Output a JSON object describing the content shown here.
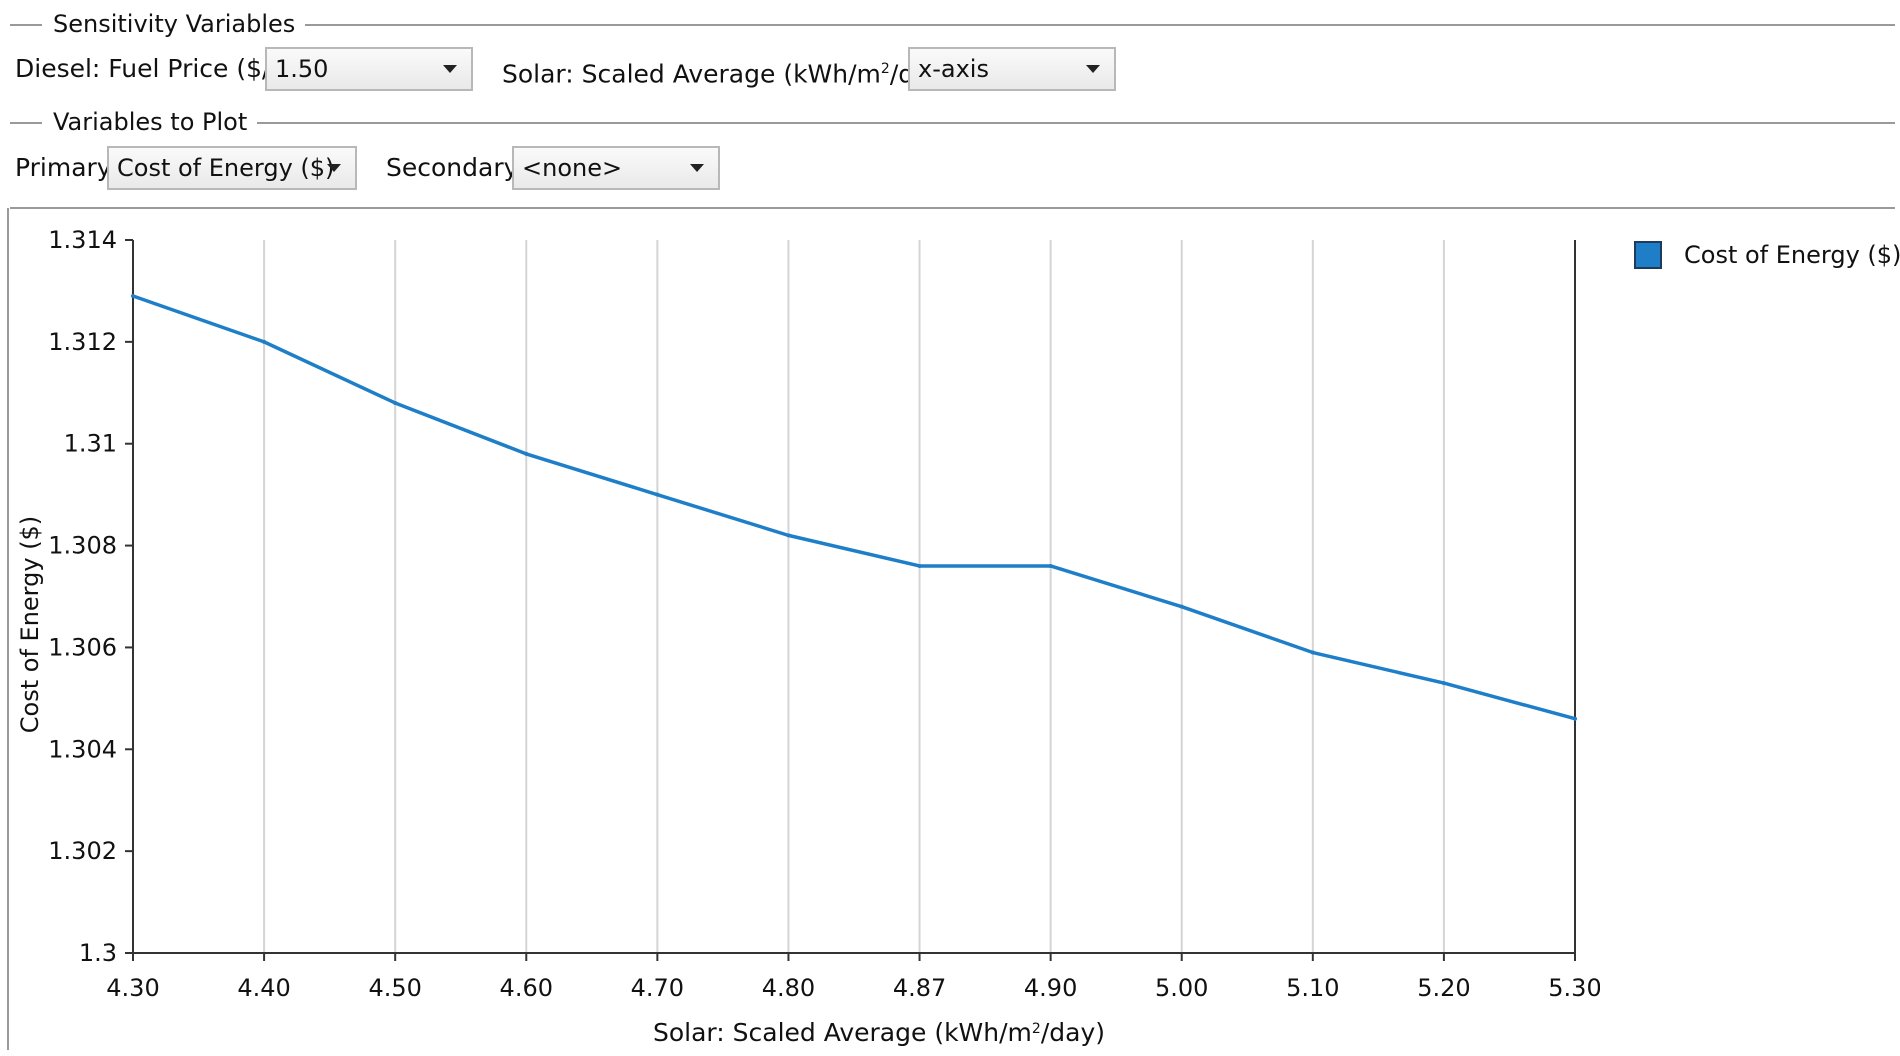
{
  "sensitivity": {
    "group_title": "Sensitivity Variables",
    "diesel_label": "Diesel: Fuel Price ($/L)",
    "diesel_value": "1.50",
    "solar_label_pre": "Solar: Scaled Average (kWh/m",
    "solar_label_sup": "2",
    "solar_label_post": "/day)",
    "solar_value": "x-axis"
  },
  "plot_vars": {
    "group_title": "Variables to Plot",
    "primary_label": "Primary",
    "primary_value": "Cost of Energy ($)",
    "secondary_label": "Secondary",
    "secondary_value": "<none>"
  },
  "chart_data": {
    "type": "line",
    "xlabel_pre": "Solar: Scaled Average (kWh/m",
    "xlabel_sup": "2",
    "xlabel_post": "/day)",
    "ylabel": "Cost of Energy ($)",
    "x_ticks": [
      "4.30",
      "4.40",
      "4.50",
      "4.60",
      "4.70",
      "4.80",
      "4.87",
      "4.90",
      "5.00",
      "5.10",
      "5.20",
      "5.30"
    ],
    "y_ticks": [
      "1.3",
      "1.302",
      "1.304",
      "1.306",
      "1.308",
      "1.31",
      "1.312",
      "1.314"
    ],
    "ylim": [
      1.3,
      1.314
    ],
    "grid": true,
    "legend_position": "top-right",
    "series": [
      {
        "name": "Cost of Energy ($)",
        "color": "#1e7fc8",
        "x": [
          "4.30",
          "4.40",
          "4.50",
          "4.60",
          "4.70",
          "4.80",
          "4.87",
          "4.90",
          "5.00",
          "5.10",
          "5.20",
          "5.30"
        ],
        "values": [
          1.3129,
          1.312,
          1.3108,
          1.3098,
          1.309,
          1.3082,
          1.3076,
          1.3076,
          1.3068,
          1.3059,
          1.3053,
          1.3046
        ]
      }
    ]
  }
}
